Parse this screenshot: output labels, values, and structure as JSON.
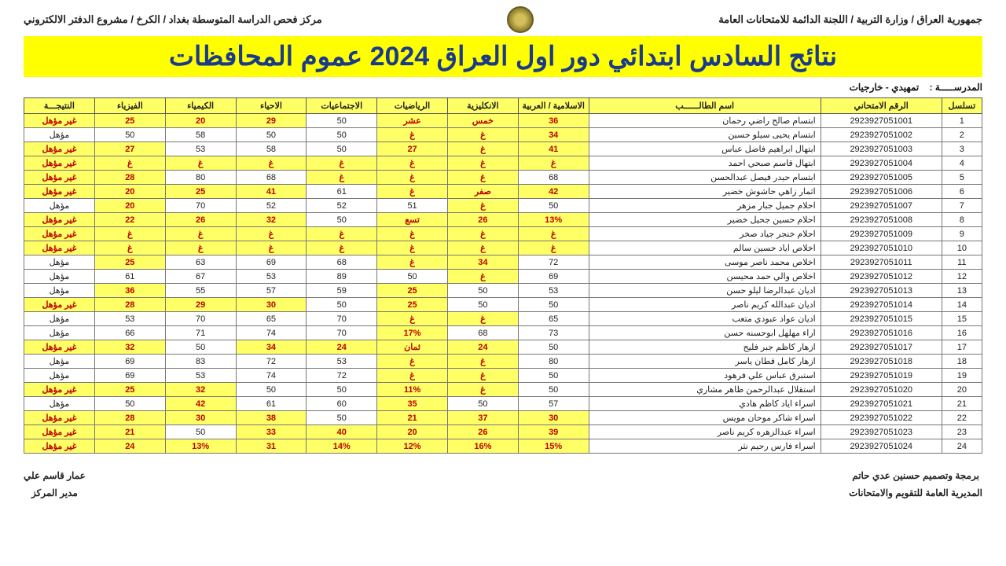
{
  "header": {
    "right": "جمهورية العراق / وزارة التربية / اللجنة الدائمة للامتحانات العامة",
    "left": "مركز فحص الدراسة المتوسطة بغداد / الكرخ / مشروع الدفتر الالكتروني"
  },
  "banner": "نتائج السادس ابتدائي دور اول العراق 2024 عموم المحافظات",
  "school_label": "المدرســـــة :",
  "school_value": "تمهيدي - خارجيات",
  "columns": [
    "تسلسل",
    "الرقم الامتحاني",
    "اسم الطالــــــب",
    "الاسلامية / العربية",
    "الانكليزية",
    "الرياضيات",
    "الاجتماعيات",
    "الاحياء",
    "الكيمياء",
    "الفيزياء",
    "النتيجـــة"
  ],
  "rows": [
    {
      "seq": "1",
      "exam": "2923927051001",
      "name": "ابتسام صالح راضي رحمان",
      "c": [
        [
          "36",
          1
        ],
        [
          "خمس",
          1
        ],
        [
          "عشر",
          1
        ],
        [
          "50",
          0
        ],
        [
          "29",
          1
        ],
        [
          "20",
          1
        ],
        [
          "25",
          1
        ],
        [
          "غير مؤهل",
          1
        ]
      ]
    },
    {
      "seq": "2",
      "exam": "2923927051002",
      "name": "ابتسام يحيى سيلو حسين",
      "c": [
        [
          "34",
          1
        ],
        [
          "غ",
          1
        ],
        [
          "غ",
          1
        ],
        [
          "50",
          0
        ],
        [
          "50",
          0
        ],
        [
          "58",
          0
        ],
        [
          "50",
          0
        ],
        [
          "مؤهل",
          0
        ]
      ]
    },
    {
      "seq": "3",
      "exam": "2923927051003",
      "name": "ابتهال ابراهيم فاضل عباس",
      "c": [
        [
          "41",
          1
        ],
        [
          "غ",
          1
        ],
        [
          "27",
          1
        ],
        [
          "50",
          0
        ],
        [
          "58",
          0
        ],
        [
          "53",
          0
        ],
        [
          "27",
          1
        ],
        [
          "غير مؤهل",
          1
        ]
      ]
    },
    {
      "seq": "4",
      "exam": "2923927051004",
      "name": "ابتهال قاسم صبحي احمد",
      "c": [
        [
          "غ",
          1
        ],
        [
          "غ",
          1
        ],
        [
          "غ",
          1
        ],
        [
          "غ",
          1
        ],
        [
          "غ",
          1
        ],
        [
          "غ",
          1
        ],
        [
          "غ",
          1
        ],
        [
          "غير مؤهل",
          1
        ]
      ]
    },
    {
      "seq": "5",
      "exam": "2923927051005",
      "name": "ابتسام حيدر فيصل عبدالحسن",
      "c": [
        [
          "68",
          0
        ],
        [
          "غ",
          1
        ],
        [
          "غ",
          1
        ],
        [
          "غ",
          1
        ],
        [
          "68",
          0
        ],
        [
          "80",
          0
        ],
        [
          "28",
          1
        ],
        [
          "غير مؤهل",
          1
        ]
      ]
    },
    {
      "seq": "6",
      "exam": "2923927051006",
      "name": "اثمار زاهي حاشوش خضير",
      "c": [
        [
          "42",
          1
        ],
        [
          "صفر",
          1
        ],
        [
          "غ",
          1
        ],
        [
          "61",
          0
        ],
        [
          "41",
          1
        ],
        [
          "25",
          1
        ],
        [
          "20",
          1
        ],
        [
          "غير مؤهل",
          1
        ]
      ]
    },
    {
      "seq": "7",
      "exam": "2923927051007",
      "name": "احلام جميل جبار مزهر",
      "c": [
        [
          "50",
          0
        ],
        [
          "غ",
          1
        ],
        [
          "51",
          0
        ],
        [
          "52",
          0
        ],
        [
          "52",
          0
        ],
        [
          "70",
          0
        ],
        [
          "20",
          1
        ],
        [
          "مؤهل",
          0
        ]
      ]
    },
    {
      "seq": "8",
      "exam": "2923927051008",
      "name": "احلام حسين جحيل خضير",
      "c": [
        [
          "13%",
          1
        ],
        [
          "26",
          1
        ],
        [
          "تسع",
          1
        ],
        [
          "50",
          0
        ],
        [
          "32",
          1
        ],
        [
          "26",
          1
        ],
        [
          "22",
          1
        ],
        [
          "غير مؤهل",
          1
        ]
      ]
    },
    {
      "seq": "9",
      "exam": "2923927051009",
      "name": "احلام خنجر جياد صخر",
      "c": [
        [
          "غ",
          1
        ],
        [
          "غ",
          1
        ],
        [
          "غ",
          1
        ],
        [
          "غ",
          1
        ],
        [
          "غ",
          1
        ],
        [
          "غ",
          1
        ],
        [
          "غ",
          1
        ],
        [
          "غير مؤهل",
          1
        ]
      ]
    },
    {
      "seq": "10",
      "exam": "2923927051010",
      "name": "اخلاص اياد حسين سالم",
      "c": [
        [
          "غ",
          1
        ],
        [
          "غ",
          1
        ],
        [
          "غ",
          1
        ],
        [
          "غ",
          1
        ],
        [
          "غ",
          1
        ],
        [
          "غ",
          1
        ],
        [
          "غ",
          1
        ],
        [
          "غير مؤهل",
          1
        ]
      ]
    },
    {
      "seq": "11",
      "exam": "2923927051011",
      "name": "اخلاص محمد ناصر موسى",
      "c": [
        [
          "72",
          0
        ],
        [
          "34",
          1
        ],
        [
          "غ",
          1
        ],
        [
          "68",
          0
        ],
        [
          "69",
          0
        ],
        [
          "63",
          0
        ],
        [
          "25",
          1
        ],
        [
          "مؤهل",
          0
        ]
      ]
    },
    {
      "seq": "12",
      "exam": "2923927051012",
      "name": "اخلاص والي حمد محيسن",
      "c": [
        [
          "69",
          0
        ],
        [
          "غ",
          1
        ],
        [
          "50",
          0
        ],
        [
          "89",
          0
        ],
        [
          "53",
          0
        ],
        [
          "67",
          0
        ],
        [
          "61",
          0
        ],
        [
          "مؤهل",
          0
        ]
      ]
    },
    {
      "seq": "13",
      "exam": "2923927051013",
      "name": "اديان عبدالرضا ليلو حسن",
      "c": [
        [
          "53",
          0
        ],
        [
          "50",
          0
        ],
        [
          "25",
          1
        ],
        [
          "59",
          0
        ],
        [
          "57",
          0
        ],
        [
          "55",
          0
        ],
        [
          "36",
          1
        ],
        [
          "مؤهل",
          0
        ]
      ]
    },
    {
      "seq": "14",
      "exam": "2923927051014",
      "name": "اديان عبدالله كريم ناصر",
      "c": [
        [
          "50",
          0
        ],
        [
          "50",
          0
        ],
        [
          "25",
          1
        ],
        [
          "50",
          0
        ],
        [
          "30",
          1
        ],
        [
          "29",
          1
        ],
        [
          "28",
          1
        ],
        [
          "غير مؤهل",
          1
        ]
      ]
    },
    {
      "seq": "15",
      "exam": "2923927051015",
      "name": "اديان عواد عبودي متعب",
      "c": [
        [
          "65",
          0
        ],
        [
          "غ",
          1
        ],
        [
          "غ",
          1
        ],
        [
          "70",
          0
        ],
        [
          "65",
          0
        ],
        [
          "70",
          0
        ],
        [
          "53",
          0
        ],
        [
          "مؤهل",
          0
        ]
      ]
    },
    {
      "seq": "16",
      "exam": "2923927051016",
      "name": "اراء مهلهل ابوحسنه حسن",
      "c": [
        [
          "73",
          0
        ],
        [
          "68",
          0
        ],
        [
          "17%",
          1
        ],
        [
          "70",
          0
        ],
        [
          "74",
          0
        ],
        [
          "71",
          0
        ],
        [
          "66",
          0
        ],
        [
          "مؤهل",
          0
        ]
      ]
    },
    {
      "seq": "17",
      "exam": "2923927051017",
      "name": "ازهار كاظم جبر فليح",
      "c": [
        [
          "50",
          0
        ],
        [
          "24",
          1
        ],
        [
          "ثمان",
          1
        ],
        [
          "24",
          1
        ],
        [
          "34",
          1
        ],
        [
          "50",
          0
        ],
        [
          "32",
          1
        ],
        [
          "غير مؤهل",
          1
        ]
      ]
    },
    {
      "seq": "18",
      "exam": "2923927051018",
      "name": "ازهار كامل قطان ياسر",
      "c": [
        [
          "80",
          0
        ],
        [
          "غ",
          1
        ],
        [
          "غ",
          1
        ],
        [
          "53",
          0
        ],
        [
          "72",
          0
        ],
        [
          "83",
          0
        ],
        [
          "69",
          0
        ],
        [
          "مؤهل",
          0
        ]
      ]
    },
    {
      "seq": "19",
      "exam": "2923927051019",
      "name": "استبرق عباس علي فرهود",
      "c": [
        [
          "50",
          0
        ],
        [
          "غ",
          1
        ],
        [
          "غ",
          1
        ],
        [
          "72",
          0
        ],
        [
          "74",
          0
        ],
        [
          "53",
          0
        ],
        [
          "69",
          0
        ],
        [
          "مؤهل",
          0
        ]
      ]
    },
    {
      "seq": "20",
      "exam": "2923927051020",
      "name": "استقلال عبدالرحمن ظاهر مشاري",
      "c": [
        [
          "50",
          0
        ],
        [
          "غ",
          1
        ],
        [
          "11%",
          1
        ],
        [
          "50",
          0
        ],
        [
          "50",
          0
        ],
        [
          "32",
          1
        ],
        [
          "25",
          1
        ],
        [
          "غير مؤهل",
          1
        ]
      ]
    },
    {
      "seq": "21",
      "exam": "2923927051021",
      "name": "اسراء اياد كاظم هادي",
      "c": [
        [
          "57",
          0
        ],
        [
          "50",
          0
        ],
        [
          "35",
          1
        ],
        [
          "60",
          0
        ],
        [
          "61",
          0
        ],
        [
          "42",
          1
        ],
        [
          "50",
          0
        ],
        [
          "مؤهل",
          0
        ]
      ]
    },
    {
      "seq": "22",
      "exam": "2923927051022",
      "name": "اسراء شاكر موحان مويس",
      "c": [
        [
          "30",
          1
        ],
        [
          "37",
          1
        ],
        [
          "21",
          1
        ],
        [
          "50",
          0
        ],
        [
          "38",
          1
        ],
        [
          "30",
          1
        ],
        [
          "28",
          1
        ],
        [
          "غير مؤهل",
          1
        ]
      ]
    },
    {
      "seq": "23",
      "exam": "2923927051023",
      "name": "اسراء عبدالزهره كريم ناصر",
      "c": [
        [
          "39",
          1
        ],
        [
          "26",
          1
        ],
        [
          "20",
          1
        ],
        [
          "40",
          1
        ],
        [
          "33",
          1
        ],
        [
          "50",
          0
        ],
        [
          "21",
          1
        ],
        [
          "غير مؤهل",
          1
        ]
      ]
    },
    {
      "seq": "24",
      "exam": "2923927051024",
      "name": "اسراء فارس رحيم نثر",
      "c": [
        [
          "15%",
          1
        ],
        [
          "16%",
          1
        ],
        [
          "12%",
          1
        ],
        [
          "14%",
          1
        ],
        [
          "31",
          1
        ],
        [
          "13%",
          1
        ],
        [
          "24",
          1
        ],
        [
          "غير مؤهل",
          1
        ]
      ]
    }
  ],
  "footer": {
    "right1": "برمجة وتصميم حسنين عدي حاتم",
    "right2": "المديرية العامة للتقويم والامتحانات",
    "left1": "عمار قاسم علي",
    "left2": "مدير المركز"
  }
}
